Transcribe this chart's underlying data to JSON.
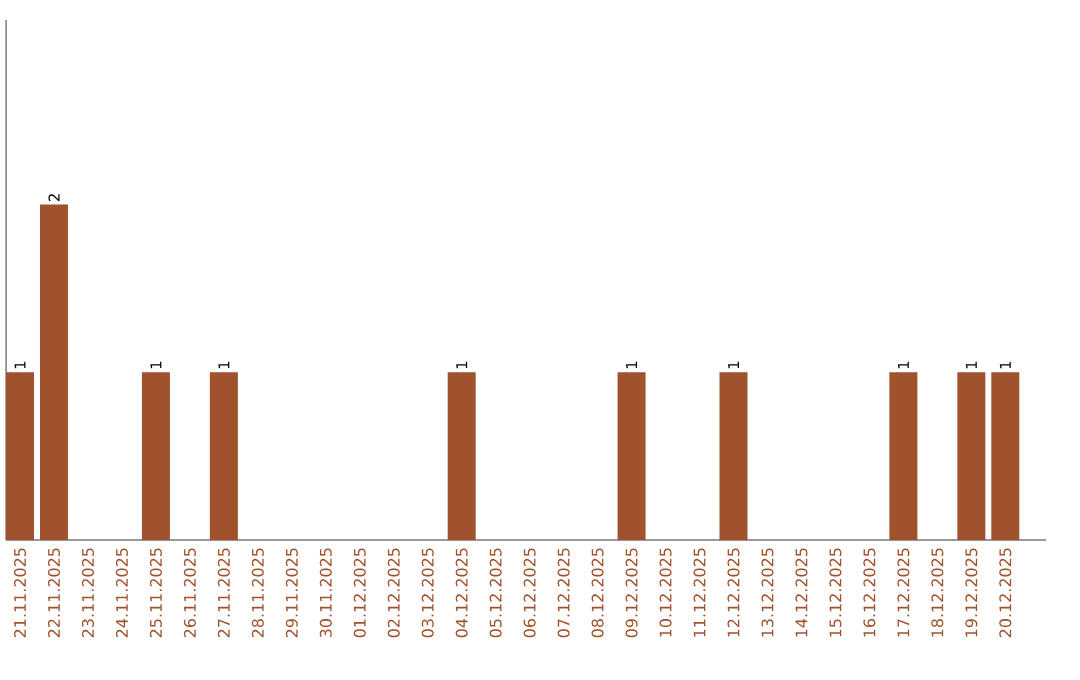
{
  "chart_data": {
    "type": "bar",
    "categories": [
      "21.11.2025",
      "22.11.2025",
      "23.11.2025",
      "24.11.2025",
      "25.11.2025",
      "26.11.2025",
      "27.11.2025",
      "28.11.2025",
      "29.11.2025",
      "30.11.2025",
      "01.12.2025",
      "02.12.2025",
      "03.12.2025",
      "04.12.2025",
      "05.12.2025",
      "06.12.2025",
      "07.12.2025",
      "08.12.2025",
      "09.12.2025",
      "10.12.2025",
      "11.12.2025",
      "12.12.2025",
      "13.12.2025",
      "14.12.2025",
      "15.12.2025",
      "16.12.2025",
      "17.12.2025",
      "18.12.2025",
      "19.12.2025",
      "20.12.2025"
    ],
    "values": [
      1,
      2,
      0,
      0,
      1,
      0,
      1,
      0,
      0,
      0,
      0,
      0,
      0,
      1,
      0,
      0,
      0,
      0,
      1,
      0,
      0,
      1,
      0,
      0,
      0,
      0,
      1,
      0,
      1,
      1
    ],
    "value_labels": [
      "1",
      "2",
      null,
      null,
      "1",
      null,
      "1",
      null,
      null,
      null,
      null,
      null,
      null,
      "1",
      null,
      null,
      null,
      null,
      "1",
      null,
      null,
      "1",
      null,
      null,
      null,
      null,
      "1",
      null,
      "1",
      "1"
    ],
    "color": "#a0522d",
    "relative": false,
    "ylim": [
      0,
      3.1
    ],
    "grid": false,
    "tick_labels": "x"
  }
}
